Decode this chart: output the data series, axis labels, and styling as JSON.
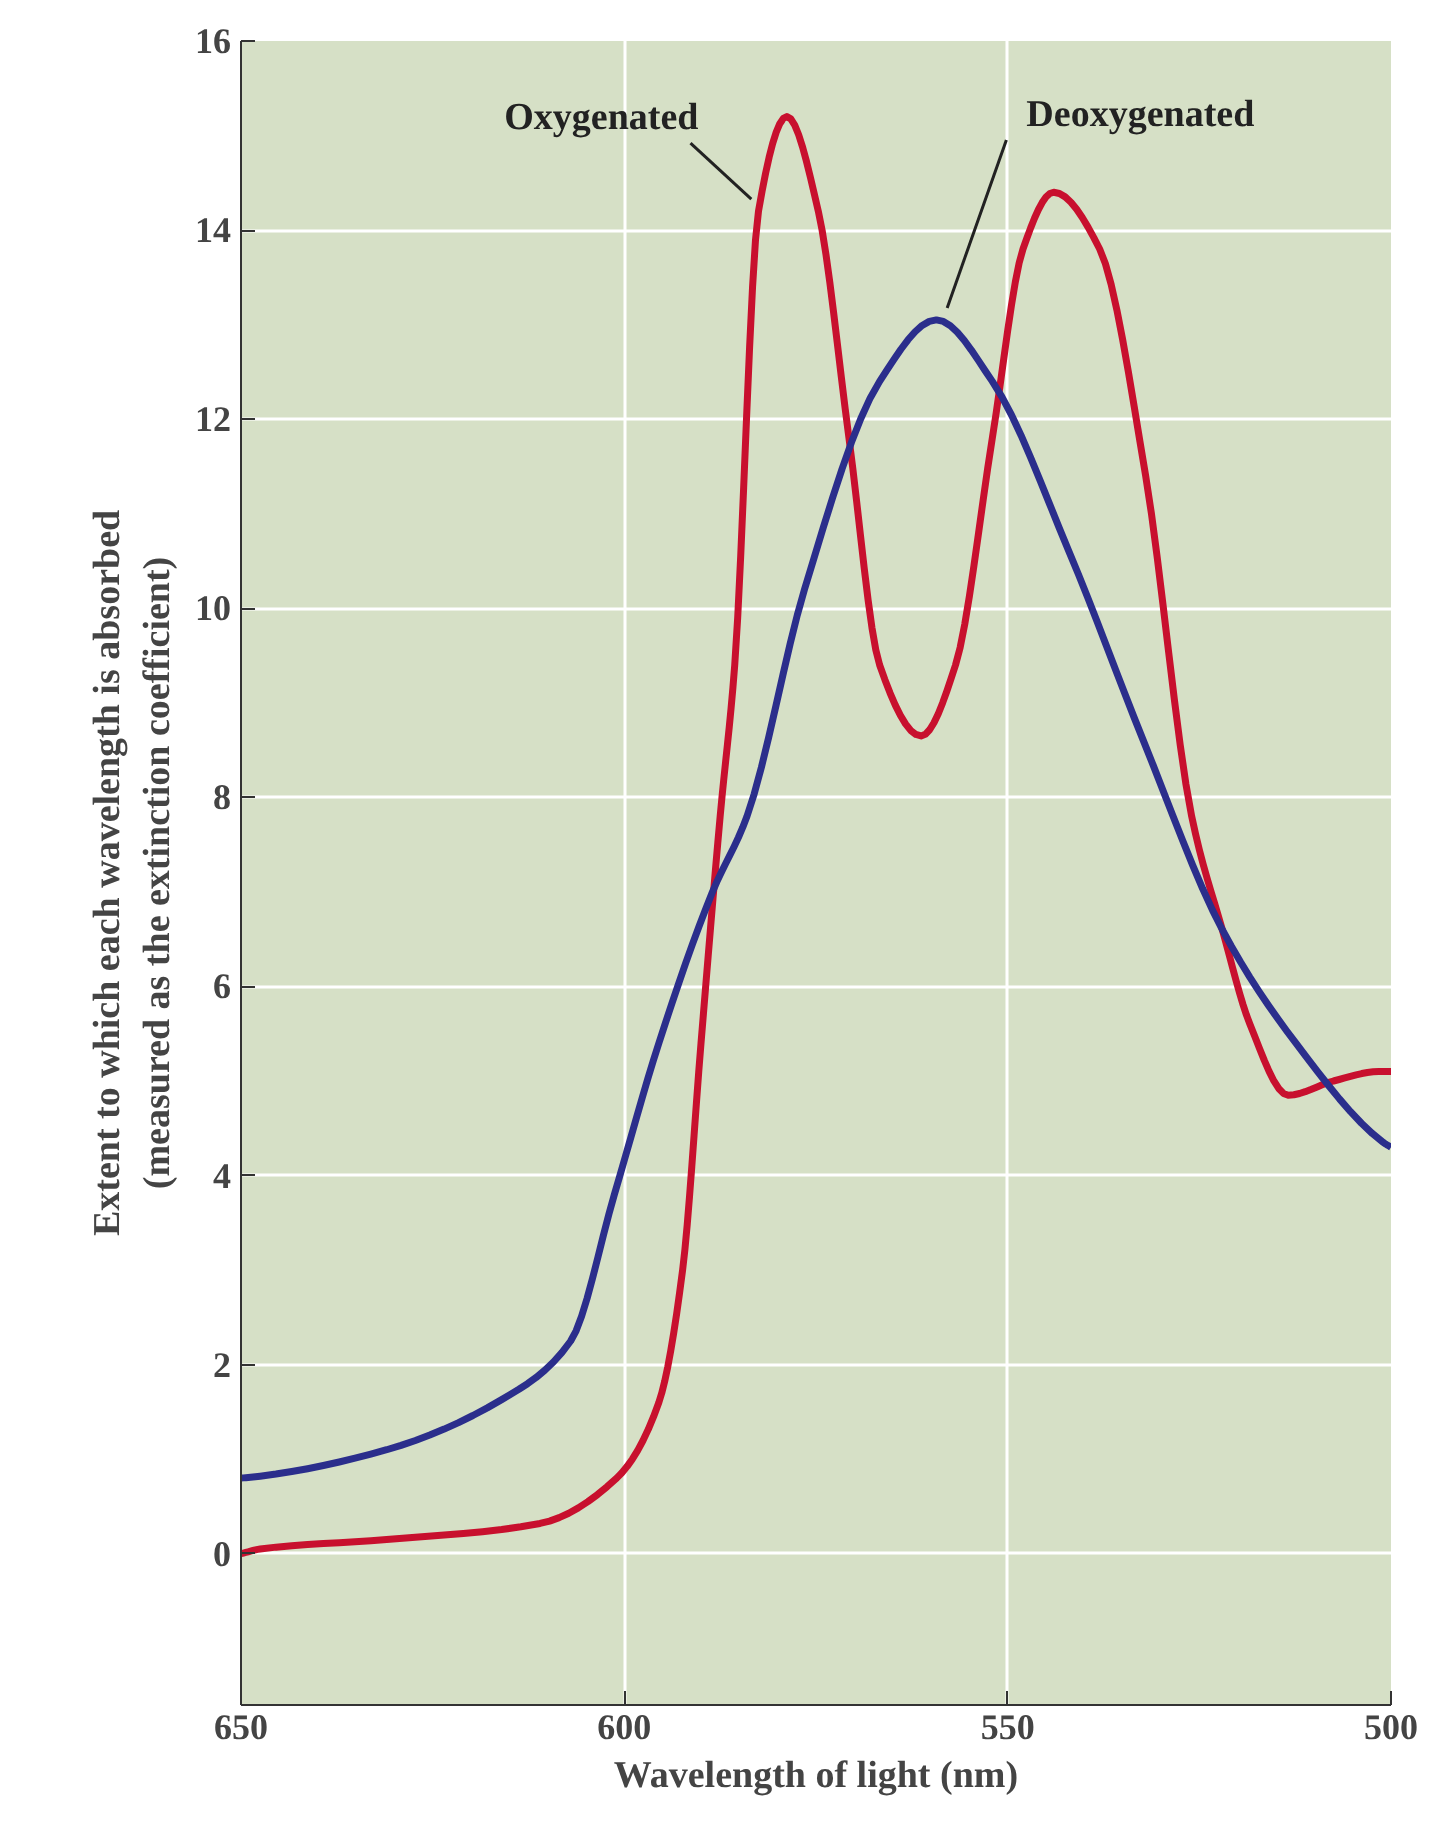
{
  "chart_data": {
    "type": "line",
    "xlabel": "Wavelength of light (nm)",
    "ylabel": "Extent to which each wavelength is absorbed\n(measured as the extinction coefficient)",
    "xlim": [
      650,
      500
    ],
    "xticks": [
      650,
      600,
      550,
      500
    ],
    "ylim": [
      -1.6,
      16
    ],
    "yticks": [
      0,
      2,
      4,
      6,
      8,
      10,
      12,
      14,
      16
    ],
    "grid": true,
    "marker": "none",
    "line_style": "solid",
    "series": [
      {
        "color": "#c8102e",
        "x": [
          650,
          647.5,
          631,
          611,
          601,
          595.5,
          592.4,
          590,
          587.5,
          585.6,
          582.5,
          578.8,
          574.7,
          570.7,
          566.7,
          561.3,
          556.8,
          552,
          548,
          544,
          538,
          532,
          526,
          522,
          518.4,
          513.4,
          507.5,
          501.6,
          500
        ],
        "values": [
          0.0,
          0.05,
          0.15,
          0.32,
          0.8,
          1.6,
          3.0,
          5.4,
          7.8,
          9.4,
          14.2,
          15.2,
          14.2,
          11.8,
          9.4,
          8.65,
          9.4,
          11.8,
          13.8,
          14.4,
          13.8,
          11.4,
          7.8,
          6.6,
          5.6,
          4.85,
          5.0,
          5.1,
          5.1
        ]
      },
      {
        "color": "#2b2e8c",
        "x": [
          650,
          647.5,
          631,
          616,
          607,
          601.3,
          595.5,
          588.5,
          584,
          576.5,
          566.7,
          559.3,
          552,
          542,
          532.3,
          522,
          512.4,
          501,
          500
        ],
        "values": [
          0.8,
          0.82,
          1.1,
          1.63,
          2.25,
          3.8,
          5.4,
          7.0,
          7.8,
          10.2,
          12.4,
          13.05,
          12.4,
          10.6,
          8.6,
          6.6,
          5.4,
          4.35,
          4.3
        ]
      }
    ],
    "annotations": [
      {
        "text": "Oxygenated",
        "x": 582.5,
        "y": 14.2
      },
      {
        "text": "Deoxygenated",
        "x": 559.3,
        "y": 13.05
      }
    ]
  }
}
